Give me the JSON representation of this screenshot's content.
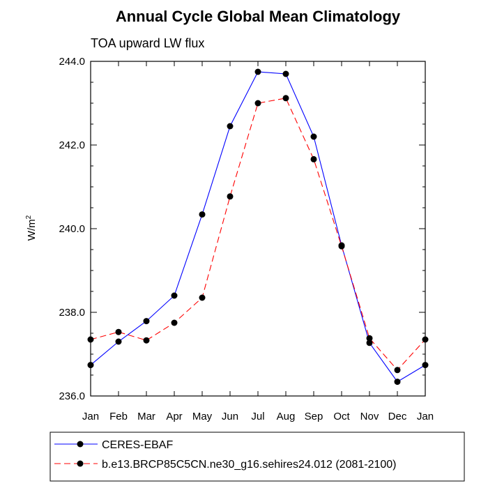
{
  "chart_data": {
    "type": "line",
    "title": "Annual Cycle Global Mean Climatology",
    "subtitle": "TOA upward LW flux",
    "ylabel": "W/m",
    "ylabel_superscript": "2",
    "categories": [
      "Jan",
      "Feb",
      "Mar",
      "Apr",
      "May",
      "Jun",
      "Jul",
      "Aug",
      "Sep",
      "Oct",
      "Nov",
      "Dec",
      "Jan"
    ],
    "ylim": [
      236.0,
      244.0
    ],
    "yticks": [
      236.0,
      238.0,
      240.0,
      242.0,
      244.0
    ],
    "ytick_labels": [
      "236.0",
      "238.0",
      "240.0",
      "242.0",
      "244.0"
    ],
    "grid": false,
    "legend_position": "bottom",
    "series": [
      {
        "name": "CERES-EBAF",
        "color": "#0000ff",
        "dash": "solid",
        "values": [
          236.74,
          237.3,
          237.79,
          238.4,
          240.34,
          242.45,
          243.75,
          243.7,
          242.2,
          239.6,
          237.27,
          236.34,
          236.74
        ]
      },
      {
        "name": "b.e13.BRCP85C5CN.ne30_g16.sehires24.012 (2081-2100)",
        "color": "#ff0000",
        "dash": "dashed",
        "values": [
          237.35,
          237.53,
          237.33,
          237.75,
          238.35,
          240.77,
          243.0,
          243.12,
          241.66,
          239.58,
          237.38,
          236.62,
          237.35
        ]
      }
    ]
  }
}
